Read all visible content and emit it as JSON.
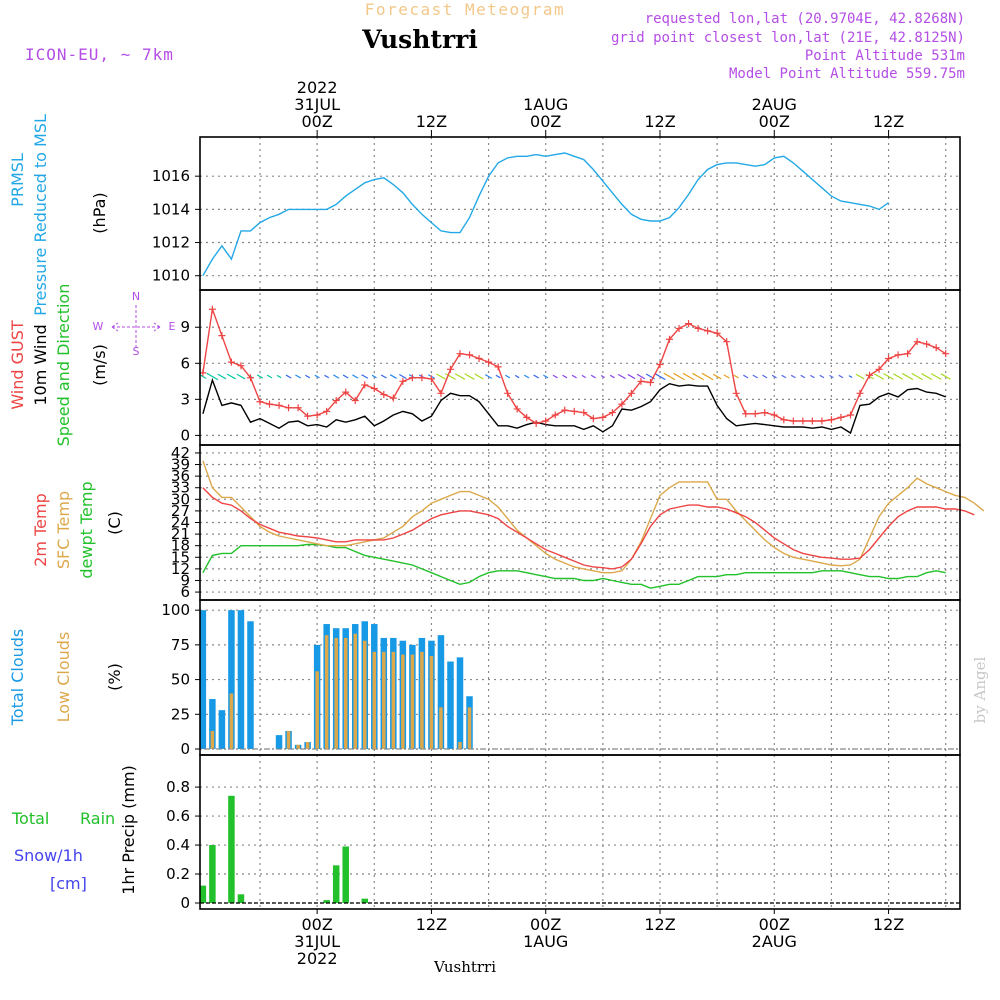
{
  "header": {
    "subtitle": "Forecast Meteogram",
    "title": "Vushtrri",
    "model": "ICON-EU, ~ 7km",
    "info": [
      "requested lon,lat (20.9704E, 42.8268N)",
      "grid point closest lon,lat (21E, 42.8125N)",
      "Point Altitude 531m",
      "Model Point Altitude 559.75m"
    ],
    "credit": "by Angel",
    "footer": "Vushtrri"
  },
  "colors": {
    "rain": "#22c02a",
    "cloud_total": "#1899e6",
    "cloud_low": "#dca84b",
    "prmsl": "#22a8e6",
    "gust": "#ee4444",
    "wind": "#000000",
    "temp": "#ee4444",
    "sfc": "#dca84b",
    "dew": "#22c02a",
    "purple": "#b44ee6",
    "grid": "#888888"
  },
  "time_axis": {
    "top_ticks": [
      {
        "h": 0,
        "l": [
          "2022",
          "31JUL",
          "00Z"
        ]
      },
      {
        "h": 12,
        "l": [
          "12Z"
        ]
      },
      {
        "h": 24,
        "l": [
          "1AUG",
          "00Z"
        ]
      },
      {
        "h": 36,
        "l": [
          "12Z"
        ]
      },
      {
        "h": 48,
        "l": [
          "2AUG",
          "00Z"
        ]
      },
      {
        "h": 60,
        "l": [
          "12Z"
        ]
      }
    ],
    "bottom_ticks": [
      {
        "h": 0,
        "l": [
          "00Z",
          "31JUL",
          "2022"
        ]
      },
      {
        "h": 12,
        "l": [
          "12Z"
        ]
      },
      {
        "h": 24,
        "l": [
          "00Z",
          "1AUG"
        ]
      },
      {
        "h": 36,
        "l": [
          "12Z"
        ]
      },
      {
        "h": 48,
        "l": [
          "00Z",
          "2AUG"
        ]
      },
      {
        "h": 60,
        "l": [
          "12Z"
        ]
      }
    ]
  },
  "chart_data": [
    {
      "type": "line",
      "panel_labels": [
        "PRMSL",
        "Pressure Reduced to MSL"
      ],
      "unit": "(hPa)",
      "x_start": -12,
      "x_step": 1,
      "ylim": [
        1009.5,
        1018.0
      ],
      "yticks": [
        1010,
        1012,
        1014,
        1016
      ],
      "series": [
        {
          "name": "PRMSL",
          "values": [
            1010.0,
            1011.0,
            1011.8,
            1011.0,
            1012.7,
            1012.7,
            1013.2,
            1013.5,
            1013.7,
            1014.0,
            1014.0,
            1014.0,
            1014.0,
            1014.0,
            1014.3,
            1014.8,
            1015.2,
            1015.6,
            1015.8,
            1015.9,
            1015.5,
            1015.0,
            1014.3,
            1013.7,
            1013.2,
            1012.7,
            1012.6,
            1012.6,
            1013.5,
            1014.8,
            1016.0,
            1016.8,
            1017.1,
            1017.2,
            1017.2,
            1017.3,
            1017.2,
            1017.3,
            1017.4,
            1017.2,
            1017.0,
            1016.4,
            1015.7,
            1015.0,
            1014.3,
            1013.7,
            1013.4,
            1013.3,
            1013.3,
            1013.5,
            1014.1,
            1014.9,
            1015.8,
            1016.4,
            1016.7,
            1016.8,
            1016.8,
            1016.7,
            1016.6,
            1016.7,
            1017.1,
            1017.2,
            1016.8,
            1016.3,
            1015.8,
            1015.3,
            1014.8,
            1014.5,
            1014.4,
            1014.3,
            1014.2,
            1014.0,
            1014.4
          ]
        }
      ]
    },
    {
      "type": "line",
      "panel_labels": [
        "Wind GUST",
        "10m Wind",
        "Speed and Direction"
      ],
      "unit": "(m/s)",
      "x_start": -12,
      "x_step": 1,
      "ylim": [
        -0.3,
        11.6
      ],
      "yticks": [
        0,
        3,
        6,
        9
      ],
      "compass": {
        "n": "N",
        "s": "S",
        "w": "W",
        "e": "E"
      },
      "series": [
        {
          "name": "Wind GUST",
          "values": [
            5.2,
            10.5,
            8.3,
            6.1,
            5.8,
            4.8,
            2.8,
            2.6,
            2.5,
            2.3,
            2.3,
            1.6,
            1.7,
            2.0,
            2.9,
            3.6,
            2.9,
            4.2,
            3.9,
            3.4,
            3.1,
            4.5,
            4.8,
            4.8,
            4.7,
            3.5,
            5.5,
            6.8,
            6.7,
            6.4,
            6.1,
            5.7,
            3.5,
            2.2,
            1.5,
            1.0,
            1.2,
            1.7,
            2.1,
            2.0,
            1.9,
            1.4,
            1.5,
            1.9,
            2.6,
            3.5,
            4.5,
            4.4,
            5.9,
            8.0,
            8.9,
            9.3,
            8.9,
            8.7,
            8.5,
            7.8,
            3.5,
            1.8,
            1.8,
            1.9,
            1.7,
            1.3,
            1.2,
            1.2,
            1.2,
            1.2,
            1.3,
            1.5,
            1.7,
            3.5,
            5.0,
            5.5,
            6.4,
            6.7,
            6.8,
            7.8,
            7.6,
            7.3,
            6.8
          ]
        },
        {
          "name": "10m Wind",
          "values": [
            1.8,
            4.6,
            2.5,
            2.7,
            2.5,
            1.1,
            1.4,
            1.0,
            0.6,
            1.1,
            1.2,
            0.8,
            0.9,
            0.7,
            1.3,
            1.1,
            1.3,
            1.6,
            0.8,
            1.2,
            1.7,
            2.0,
            1.8,
            1.2,
            1.6,
            2.9,
            3.5,
            3.3,
            3.3,
            2.8,
            1.8,
            0.8,
            0.8,
            0.6,
            0.9,
            1.1,
            0.9,
            0.8,
            0.8,
            0.8,
            0.5,
            0.8,
            0.3,
            0.8,
            2.2,
            2.1,
            2.4,
            2.8,
            3.8,
            4.3,
            4.1,
            4.2,
            4.1,
            4.1,
            2.5,
            1.4,
            0.8,
            0.9,
            1.0,
            0.9,
            0.8,
            0.7,
            0.7,
            0.7,
            0.6,
            0.7,
            0.5,
            0.7,
            0.2,
            2.5,
            2.6,
            3.2,
            3.5,
            3.2,
            3.8,
            3.9,
            3.6,
            3.5,
            3.2
          ]
        }
      ]
    },
    {
      "type": "line",
      "panel_labels": [
        "2m Temp",
        "SFC Temp",
        "dewpt Temp"
      ],
      "unit": "(C)",
      "x_start": -12,
      "x_step": 1,
      "ylim": [
        5.5,
        42.5
      ],
      "yticks": [
        6,
        9,
        12,
        15,
        18,
        21,
        24,
        27,
        30,
        33,
        36,
        39,
        42
      ],
      "series": [
        {
          "name": "2m Temp",
          "values": [
            33,
            30.5,
            29,
            28.5,
            27,
            25,
            23.5,
            22.5,
            21.5,
            21,
            20.5,
            20.3,
            20,
            19.5,
            19,
            19,
            19.5,
            19.5,
            19.5,
            19.5,
            20,
            21,
            22,
            23.5,
            25,
            26,
            26.5,
            27,
            27,
            26.5,
            26,
            25,
            23,
            21.5,
            20,
            18.5,
            17,
            16,
            15,
            14,
            13,
            12.5,
            12.3,
            12,
            12.5,
            14.5,
            18.5,
            23,
            26,
            27.5,
            28,
            28.5,
            28.5,
            28,
            28,
            27.5,
            26.5,
            25.5,
            24,
            22,
            20,
            18.5,
            17,
            16,
            15.5,
            15,
            14.8,
            14.5,
            14.5,
            14.8,
            17,
            20,
            23,
            25.5,
            27,
            28,
            28,
            28,
            27.5,
            27.5,
            27,
            26
          ]
        },
        {
          "name": "SFC Temp",
          "values": [
            40,
            33,
            30.5,
            30.5,
            28,
            25.5,
            23,
            21.5,
            20.5,
            20,
            19.5,
            19,
            18.5,
            18,
            18,
            18,
            18.5,
            19,
            19.5,
            20,
            21.5,
            23,
            25.5,
            27,
            29,
            30,
            31,
            32,
            32,
            31,
            30,
            28,
            25,
            22,
            20,
            18,
            16,
            14.5,
            13.5,
            12.5,
            12,
            11.5,
            11,
            11,
            11.5,
            14.5,
            19,
            25,
            31,
            33,
            34.5,
            34.5,
            34.5,
            34.5,
            30,
            30,
            27,
            24.5,
            22,
            19.5,
            17.5,
            16,
            15,
            14.5,
            14,
            13.5,
            13,
            12.8,
            13,
            14.5,
            20,
            25.5,
            29,
            31,
            33,
            35.5,
            34,
            33,
            32,
            31,
            30.5,
            29,
            27
          ]
        },
        {
          "name": "dewpt Temp",
          "values": [
            11,
            15.5,
            16,
            16,
            18,
            18,
            18,
            18,
            18,
            18,
            18,
            18.3,
            18.3,
            18,
            17.5,
            17.5,
            16.5,
            15.5,
            15,
            14.5,
            14,
            13.5,
            13,
            12,
            11,
            10,
            9,
            8,
            8.5,
            10,
            11,
            11.5,
            11.5,
            11.5,
            11,
            10.5,
            10,
            9.5,
            9.5,
            9.5,
            9,
            9,
            9.5,
            9,
            8.5,
            8,
            8,
            7,
            7.5,
            8,
            8,
            9,
            10,
            10,
            10,
            10.5,
            10.5,
            11,
            11,
            11,
            11,
            11,
            11,
            11,
            11,
            11.5,
            11.5,
            11.5,
            11,
            10.5,
            10,
            10,
            9.5,
            9.5,
            10,
            10,
            11,
            11.5,
            11
          ]
        }
      ]
    },
    {
      "type": "bar",
      "panel_labels": [
        "Total Clouds",
        "Low Clouds"
      ],
      "unit": "(%)",
      "x_start": -12,
      "x_step": 1,
      "ylim": [
        0,
        103
      ],
      "yticks": [
        0,
        25,
        50,
        75,
        100
      ],
      "series": [
        {
          "name": "Total Clouds",
          "values": [
            100,
            36,
            28,
            100,
            100,
            92,
            0,
            0,
            10,
            13,
            3,
            5,
            75,
            90,
            87,
            87,
            90,
            92,
            90,
            80,
            80,
            78,
            75,
            80,
            78,
            82,
            63,
            66,
            38,
            0,
            0,
            0,
            0,
            0,
            0,
            0,
            0,
            0,
            0,
            0,
            0,
            0,
            0,
            0,
            0,
            0,
            0,
            0,
            0,
            0,
            0,
            0,
            0,
            0,
            0,
            0,
            0,
            0,
            0,
            0,
            0,
            0,
            0,
            0,
            0,
            0,
            0,
            0,
            0,
            0,
            0,
            0,
            0,
            0,
            0,
            0,
            0,
            0,
            0,
            0,
            0,
            0,
            0,
            0,
            0,
            0,
            0,
            0
          ]
        },
        {
          "name": "Low Clouds",
          "values": [
            0,
            13,
            0,
            40,
            0,
            0,
            0,
            0,
            0,
            13,
            3,
            5,
            56,
            82,
            80,
            80,
            83,
            78,
            70,
            70,
            70,
            68,
            68,
            70,
            67,
            30,
            0,
            5,
            30,
            0,
            0,
            0,
            0,
            0,
            0,
            0,
            0,
            0,
            0,
            0,
            0,
            0,
            0,
            0,
            0,
            0,
            0,
            0,
            0,
            0,
            0,
            0,
            0,
            0,
            0,
            0,
            0,
            0,
            0,
            0,
            0,
            0,
            0,
            0,
            0,
            0,
            0,
            0,
            0,
            0,
            0,
            0,
            0,
            0,
            0,
            0,
            0,
            0,
            0,
            0,
            0,
            0,
            0,
            0,
            0,
            0,
            0,
            0
          ]
        }
      ]
    },
    {
      "type": "bar",
      "panel_labels": [
        "Total Rain",
        "Snow/1h",
        "[cm]"
      ],
      "unit": "1hr Precip (mm)",
      "x_start": -12,
      "x_step": 1,
      "ylim": [
        0,
        0.98
      ],
      "yticks": [
        0,
        0.2,
        0.4,
        0.6,
        0.8
      ],
      "series": [
        {
          "name": "Total Rain",
          "values": [
            0.12,
            0.4,
            0,
            0.74,
            0.06,
            0,
            0,
            0,
            0,
            0,
            0,
            0,
            0,
            0.02,
            0.26,
            0.39,
            0,
            0.03,
            0,
            0,
            0,
            0,
            0,
            0,
            0,
            0,
            0,
            0,
            0,
            0,
            0,
            0,
            0,
            0,
            0,
            0,
            0,
            0,
            0,
            0,
            0,
            0,
            0,
            0,
            0,
            0,
            0,
            0,
            0,
            0,
            0,
            0,
            0,
            0,
            0,
            0,
            0,
            0,
            0,
            0,
            0,
            0,
            0,
            0,
            0,
            0,
            0,
            0,
            0,
            0,
            0,
            0,
            0,
            0,
            0,
            0,
            0,
            0,
            0,
            0,
            0,
            0,
            0,
            0,
            0,
            0
          ]
        }
      ]
    }
  ]
}
